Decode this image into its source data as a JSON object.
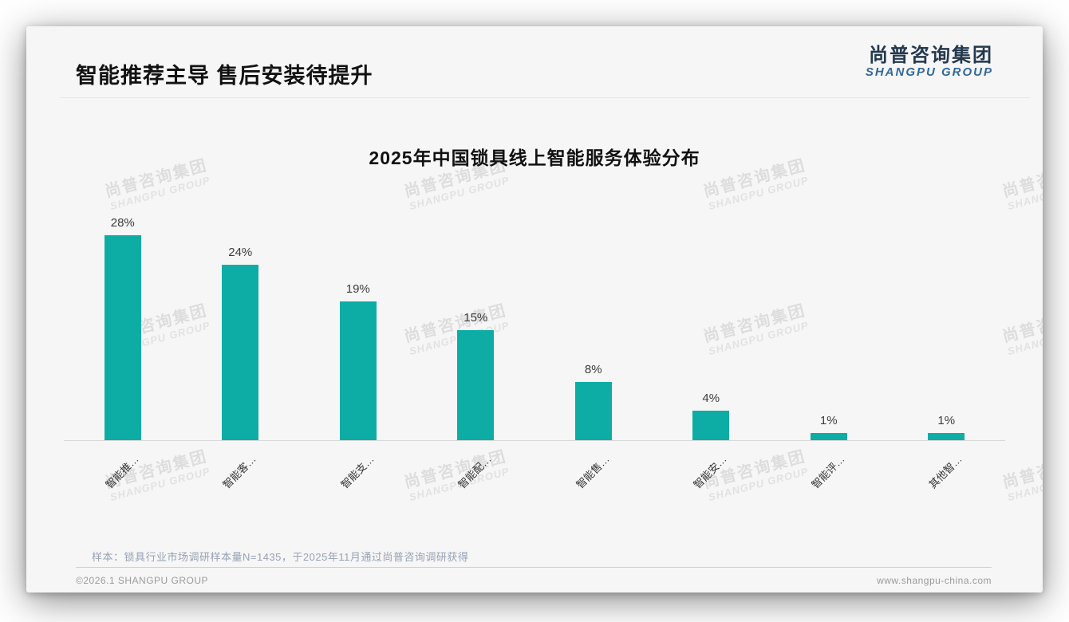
{
  "page": {
    "title": "智能推荐主导 售后安装待提升",
    "logo": {
      "cn": "尚普咨询集团",
      "en": "SHANGPU GROUP"
    },
    "watermark": {
      "cn": "尚普咨询集团",
      "en": "SHANGPU GROUP"
    },
    "note": "样本：锁具行业市场调研样本量N=1435，于2025年11月通过尚普咨询调研获得",
    "footer": {
      "copyright": "©2026.1 SHANGPU GROUP",
      "website": "www.shangpu-china.com"
    }
  },
  "chart_data": {
    "type": "bar",
    "title": "2025年中国锁具线上智能服务体验分布",
    "categories": [
      "智能推…",
      "智能客…",
      "智能支…",
      "智能配…",
      "智能售…",
      "智能安…",
      "智能评…",
      "其他智…"
    ],
    "values": [
      28,
      24,
      19,
      15,
      8,
      4,
      1,
      1
    ],
    "value_labels": [
      "28%",
      "24%",
      "19%",
      "15%",
      "8%",
      "4%",
      "1%",
      "1%"
    ],
    "unit": "%",
    "ylim": [
      0,
      30
    ],
    "grid": false,
    "legend_position": "none",
    "bar_color": "#0dada6",
    "axis_color": "#d8d8d8",
    "value_label_color": "#3d3d3d"
  }
}
